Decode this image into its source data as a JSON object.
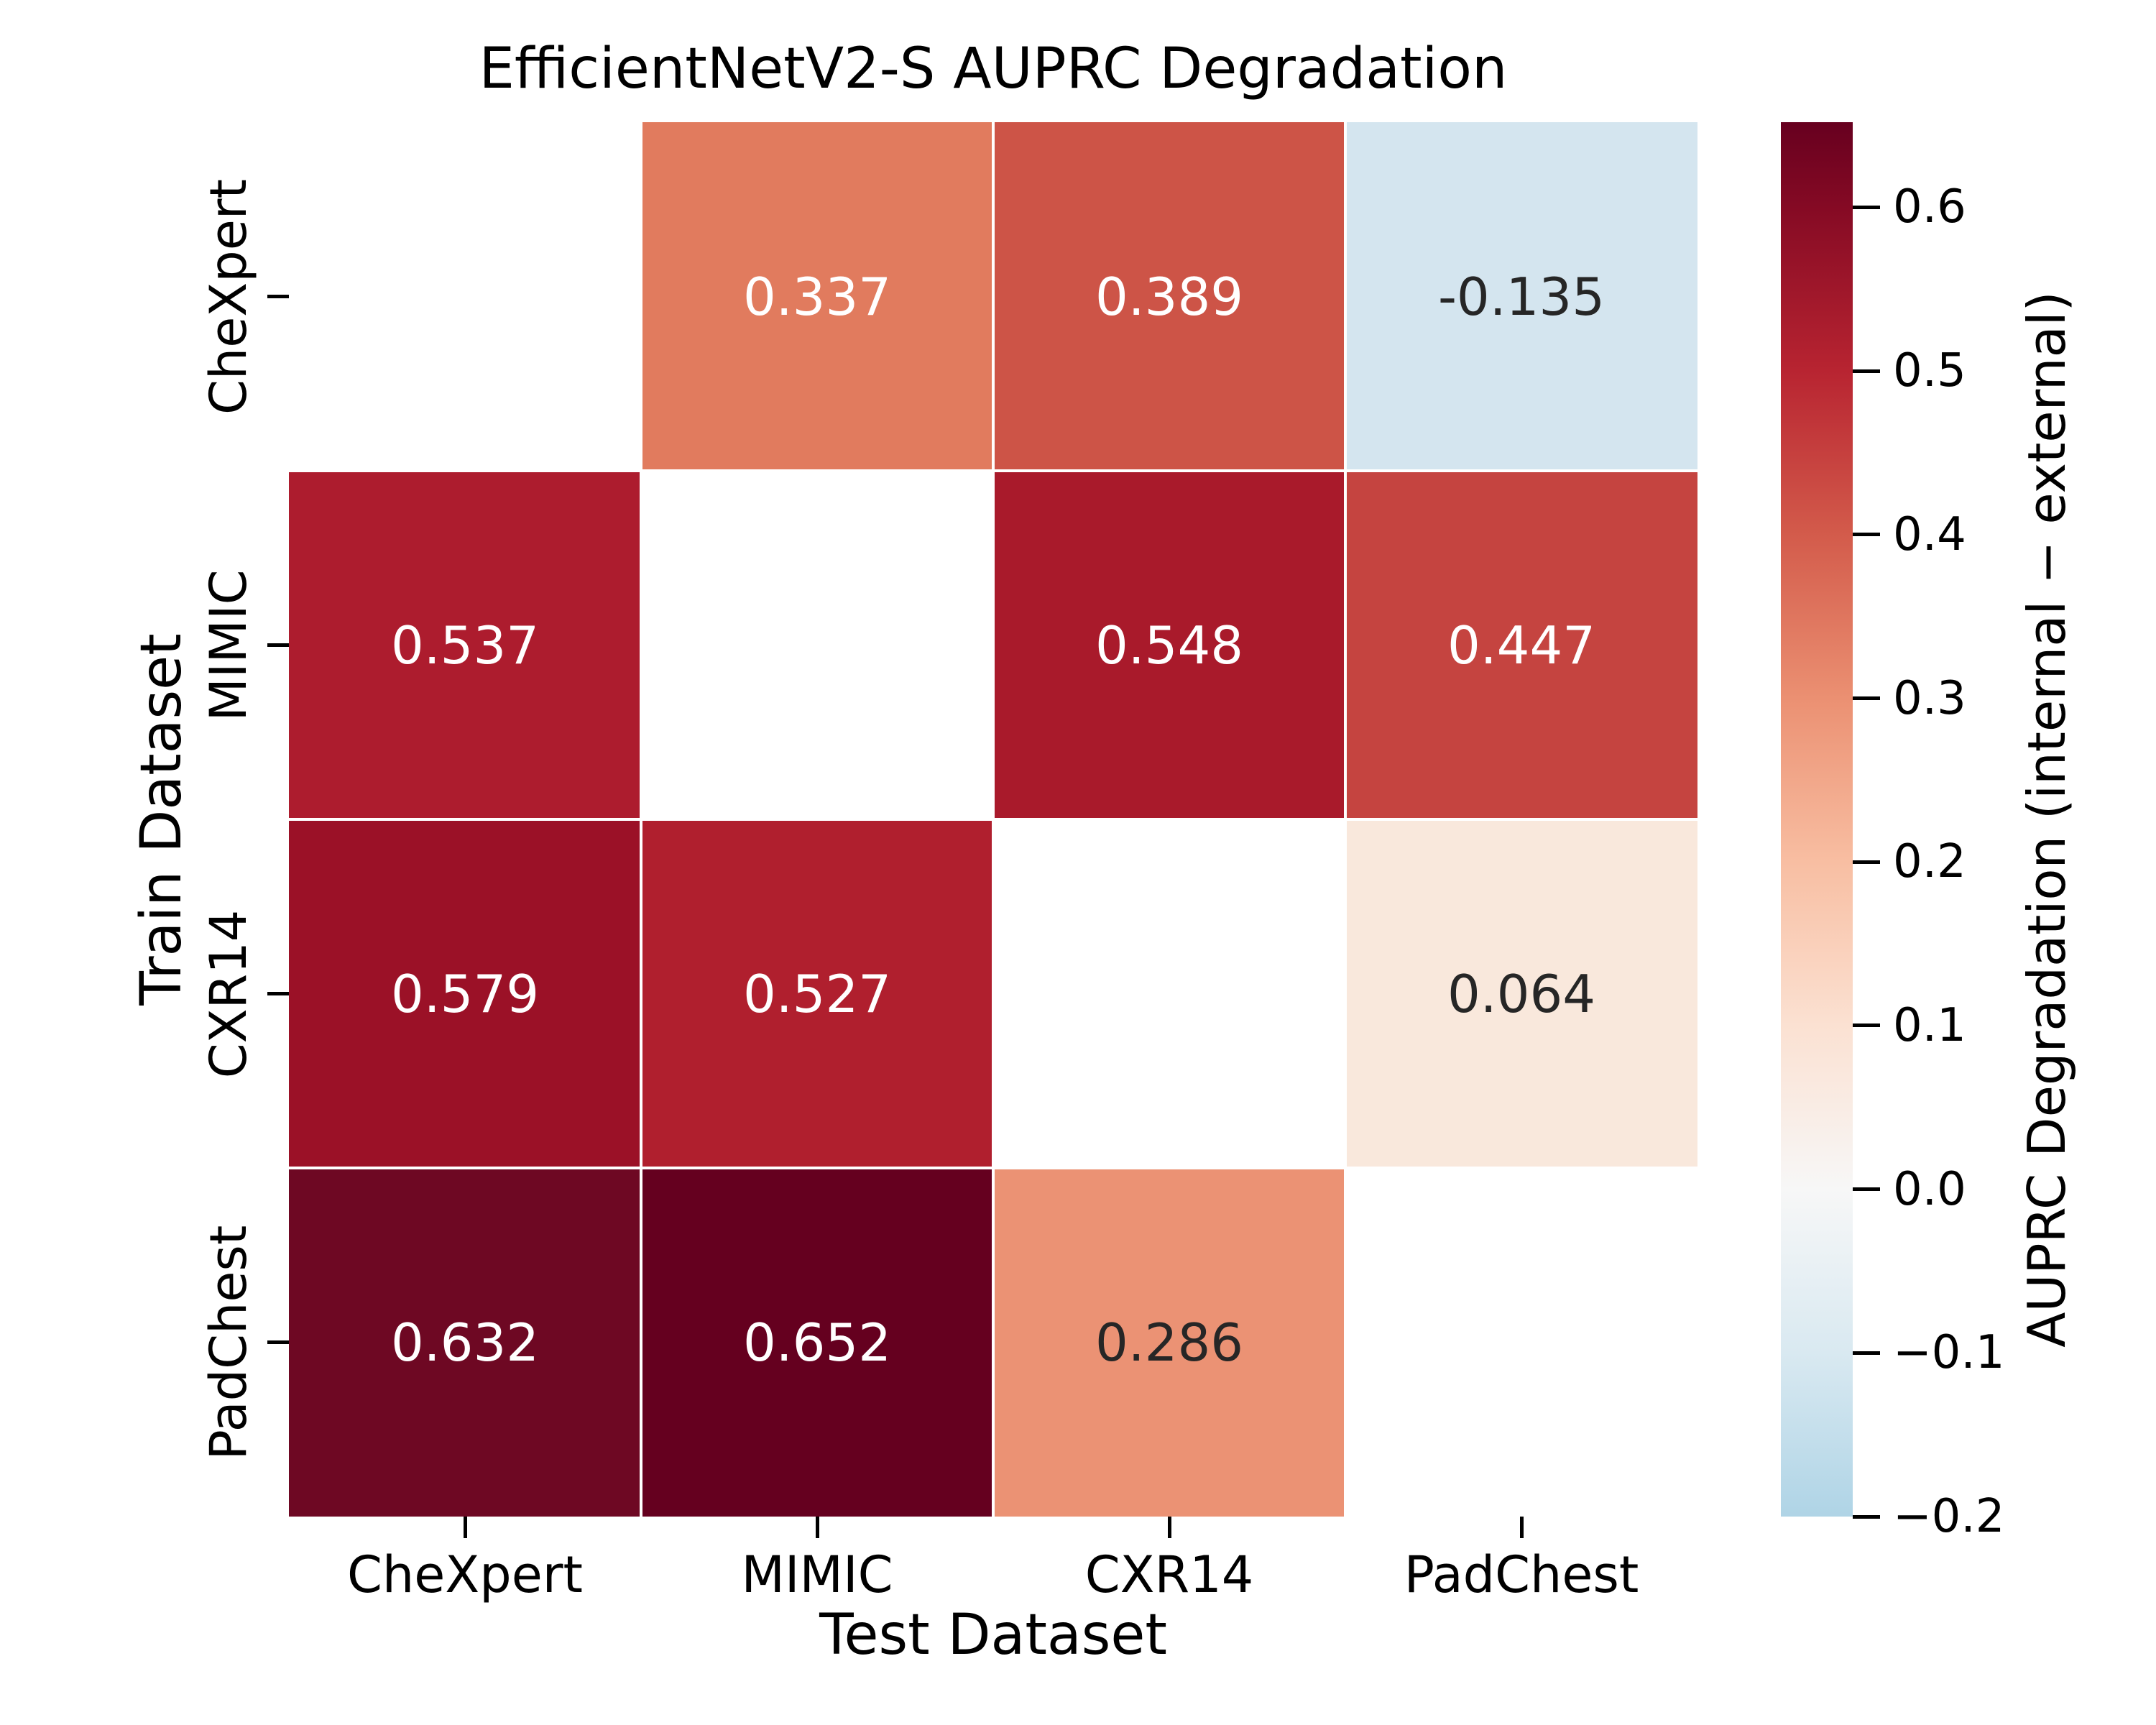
{
  "chart_data": {
    "type": "heatmap",
    "title": "EfficientNetV2-S AUPRC Degradation",
    "xlabel": "Test Dataset",
    "ylabel": "Train Dataset",
    "x_categories": [
      "CheXpert",
      "MIMIC",
      "CXR14",
      "PadChest"
    ],
    "y_categories": [
      "CheXpert",
      "MIMIC",
      "CXR14",
      "PadChest"
    ],
    "values": [
      [
        null,
        0.337,
        0.389,
        -0.135
      ],
      [
        0.537,
        null,
        0.548,
        0.447
      ],
      [
        0.579,
        0.527,
        null,
        0.064
      ],
      [
        0.632,
        0.652,
        0.286,
        null
      ]
    ],
    "cell_labels": [
      [
        "",
        "0.337",
        "0.389",
        "-0.135"
      ],
      [
        "0.537",
        "",
        "0.548",
        "0.447"
      ],
      [
        "0.579",
        "0.527",
        "",
        "0.064"
      ],
      [
        "0.632",
        "0.652",
        "0.286",
        ""
      ]
    ],
    "cell_colors": [
      [
        null,
        "#e17b5e",
        "#cd5447",
        "#d4e5ef"
      ],
      [
        "#ad1c2e",
        null,
        "#a91a2b",
        "#c54440"
      ],
      [
        "#9b1127",
        "#b01f2e",
        null,
        "#f9e8dc"
      ],
      [
        "#6e0823",
        "#65001f",
        "#eb9274",
        null
      ]
    ],
    "cell_text_colors": [
      [
        null,
        "#ffffff",
        "#ffffff",
        "#262626"
      ],
      [
        "#ffffff",
        null,
        "#ffffff",
        "#ffffff"
      ],
      [
        "#ffffff",
        "#ffffff",
        null,
        "#262626"
      ],
      [
        "#ffffff",
        "#ffffff",
        "#262626",
        null
      ]
    ],
    "grid_color": "#ffffff",
    "colorbar": {
      "label": "AUPRC Degradation (internal − external)",
      "vmax": 0.652,
      "vmin": -0.2,
      "tick_values": [
        0.6,
        0.5,
        0.4,
        0.3,
        0.2,
        0.1,
        0.0,
        -0.1,
        -0.2
      ],
      "tick_labels": [
        "0.6",
        "0.5",
        "0.4",
        "0.3",
        "0.2",
        "0.1",
        "0.0",
        "−0.1",
        "−0.2"
      ],
      "gradient_stops": [
        {
          "value": 0.652,
          "color": "#67001f"
        },
        {
          "value": 0.6,
          "color": "#850a24"
        },
        {
          "value": 0.5,
          "color": "#b82431"
        },
        {
          "value": 0.4,
          "color": "#d35b4b"
        },
        {
          "value": 0.3,
          "color": "#eb9072"
        },
        {
          "value": 0.2,
          "color": "#f8bea2"
        },
        {
          "value": 0.1,
          "color": "#fbe1d2"
        },
        {
          "value": 0.0,
          "color": "#f7f7f7"
        },
        {
          "value": -0.1,
          "color": "#d9e9f1"
        },
        {
          "value": -0.2,
          "color": "#afd4e6"
        }
      ]
    }
  }
}
